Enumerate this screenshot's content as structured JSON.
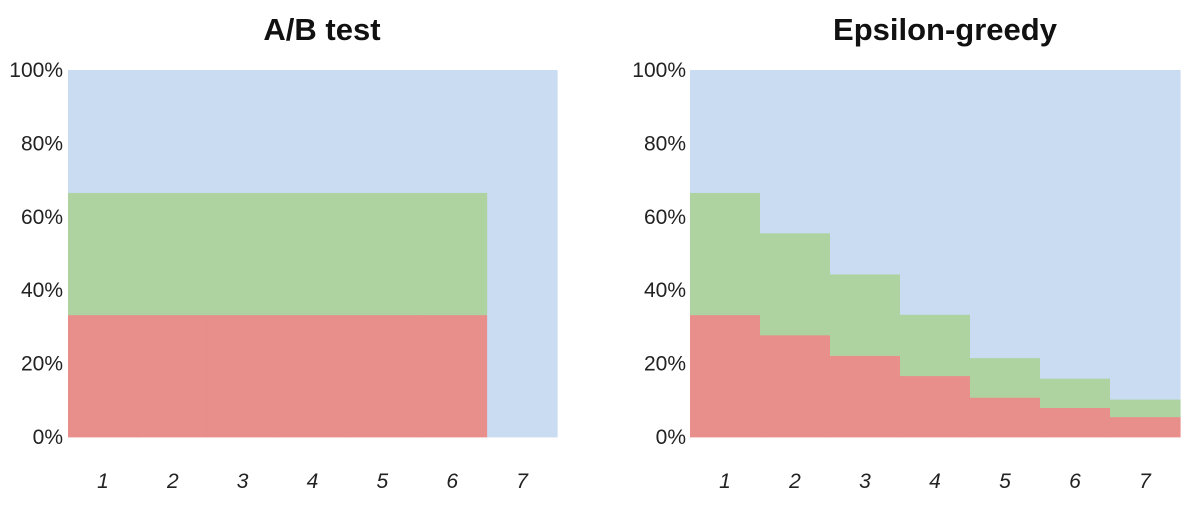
{
  "chart_data": [
    {
      "type": "area",
      "title": "A/B test",
      "categories": [
        "1",
        "2",
        "3",
        "4",
        "5",
        "6",
        "7"
      ],
      "y_ticks": [
        "0%",
        "20%",
        "40%",
        "60%",
        "80%",
        "100%"
      ],
      "ylim": [
        0,
        100
      ],
      "grid": false,
      "series": [
        {
          "values": [
            33.3,
            33.3,
            33.3,
            33.3,
            33.3,
            33.3,
            0
          ]
        },
        {
          "values": [
            33.3,
            33.3,
            33.3,
            33.3,
            33.3,
            33.3,
            0
          ]
        },
        {
          "values": [
            33.4,
            33.4,
            33.4,
            33.4,
            33.4,
            33.4,
            100
          ]
        }
      ]
    },
    {
      "type": "area",
      "title": "Epsilon-greedy",
      "categories": [
        "1",
        "2",
        "3",
        "4",
        "5",
        "6",
        "7"
      ],
      "y_ticks": [
        "0%",
        "20%",
        "40%",
        "60%",
        "80%",
        "100%"
      ],
      "ylim": [
        0,
        100
      ],
      "grid": false,
      "series": [
        {
          "values": [
            33.3,
            27.8,
            22.2,
            16.7,
            10.8,
            8.0,
            5.5
          ]
        },
        {
          "values": [
            33.3,
            27.8,
            22.2,
            16.7,
            10.8,
            8.0,
            4.8
          ]
        },
        {
          "values": [
            33.4,
            44.4,
            55.6,
            66.6,
            78.4,
            84.0,
            89.7
          ]
        }
      ]
    }
  ],
  "colors": {
    "series": [
      "#e88e8b",
      "#afd3a0",
      "#c9dcf2"
    ]
  }
}
